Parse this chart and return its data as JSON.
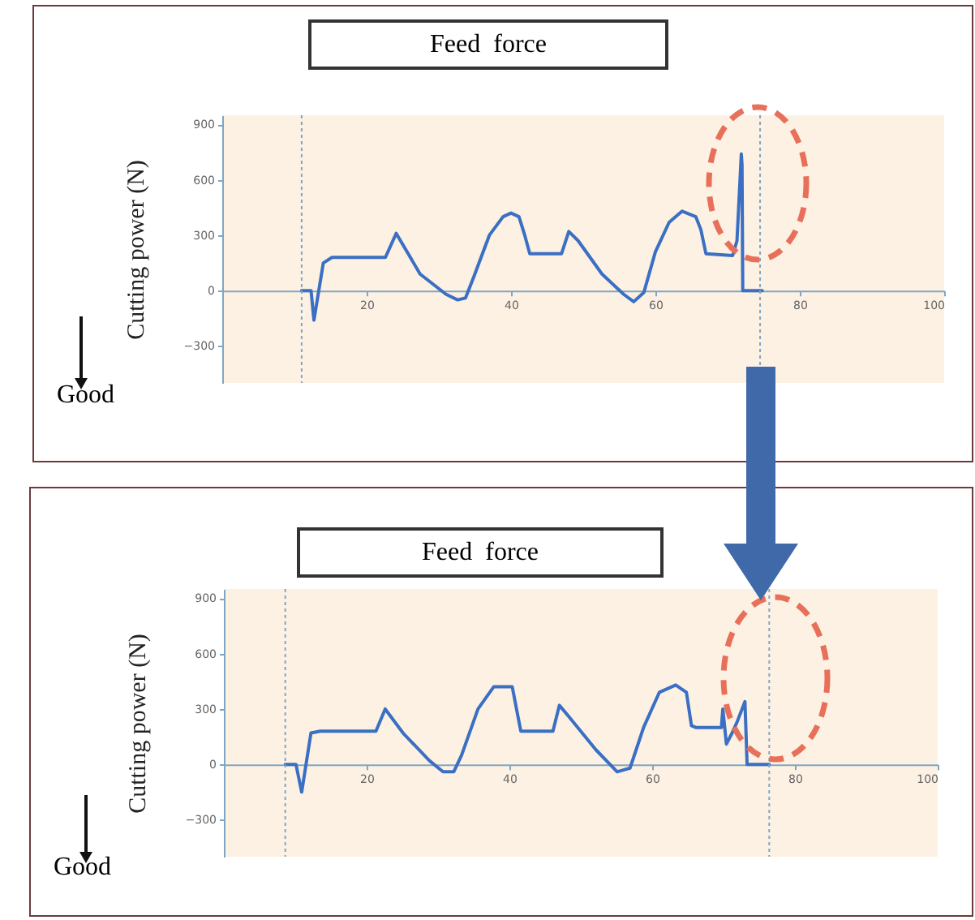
{
  "chart_data": [
    {
      "type": "line",
      "title": "Feed force",
      "ylabel": "Cutting power (N)",
      "annotations": [
        "Good"
      ],
      "xlim": [
        0,
        100
      ],
      "xticks": [
        20,
        40,
        60,
        80,
        100
      ],
      "ylim": [
        -500,
        950
      ],
      "yticks": [
        -300,
        0,
        300,
        600,
        900
      ],
      "grid": false,
      "ref_lines": [
        {
          "axis": "x",
          "value": 11,
          "label": null,
          "color": "#7fa6c4",
          "line_style": "dotted"
        },
        {
          "axis": "x",
          "value": 74.5,
          "label": null,
          "color": "#7fa6c4",
          "line_style": "dotted"
        }
      ],
      "series": [
        {
          "color": "#3a6fc4",
          "x": [
            11,
            12.3,
            12.7,
            14,
            15.2,
            22.6,
            24.1,
            27.4,
            31,
            32.6,
            33.7,
            34.8,
            37,
            38.9,
            40,
            41.1,
            41.9,
            42.6,
            47,
            48,
            49.3,
            52.6,
            55.6,
            57,
            58.4,
            60,
            61.9,
            63.7,
            65.6,
            66.3,
            67,
            70.7,
            71.3,
            71.9,
            72,
            72.1,
            74.8
          ],
          "values": [
            0,
            0,
            -160,
            150,
            180,
            180,
            310,
            90,
            -20,
            -50,
            -40,
            70,
            300,
            400,
            420,
            400,
            300,
            200,
            200,
            320,
            270,
            90,
            -20,
            -60,
            -10,
            210,
            370,
            430,
            400,
            330,
            200,
            190,
            270,
            740,
            680,
            0,
            0
          ]
        }
      ]
    },
    {
      "type": "line",
      "title": "Feed force",
      "ylabel": "Cutting power (N)",
      "annotations": [
        "Good"
      ],
      "xlim": [
        0,
        100
      ],
      "xticks": [
        20,
        40,
        60,
        80,
        100
      ],
      "ylim": [
        -500,
        950
      ],
      "yticks": [
        -300,
        0,
        300,
        600,
        900
      ],
      "grid": false,
      "ref_lines": [
        {
          "axis": "x",
          "value": 8.6,
          "label": null,
          "color": "#7fa6c4",
          "line_style": "dotted"
        },
        {
          "axis": "x",
          "value": 76.4,
          "label": null,
          "color": "#7fa6c4",
          "line_style": "dotted"
        }
      ],
      "series": [
        {
          "color": "#3a6fc4",
          "x": [
            8.6,
            10.1,
            10.9,
            12.2,
            13.5,
            21.3,
            22.6,
            25.1,
            28.8,
            30.7,
            32.2,
            33.3,
            35.6,
            37.8,
            40.4,
            41.2,
            41.6,
            46.1,
            47,
            48.3,
            52.1,
            55.1,
            56.9,
            58.8,
            61,
            63.3,
            64.8,
            65.5,
            66.1,
            69.7,
            69.9,
            70.4,
            71.2,
            71.9,
            73,
            73.3,
            76.4
          ],
          "values": [
            0,
            0,
            -150,
            170,
            180,
            180,
            300,
            170,
            20,
            -40,
            -40,
            50,
            300,
            420,
            420,
            260,
            180,
            180,
            320,
            260,
            80,
            -40,
            -20,
            200,
            390,
            430,
            390,
            210,
            200,
            200,
            300,
            110,
            170,
            230,
            340,
            0,
            0
          ]
        }
      ]
    }
  ]
}
